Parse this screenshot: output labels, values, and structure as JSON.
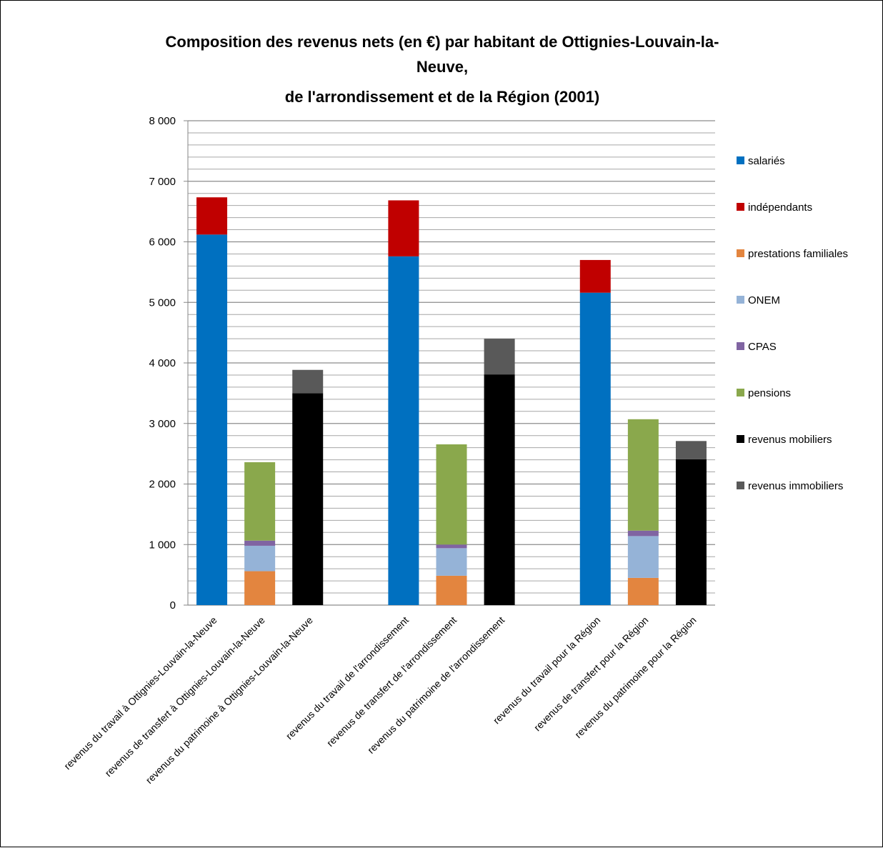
{
  "chart_data": {
    "type": "bar",
    "stacked": true,
    "title_lines": [
      "Composition  des revenus nets (en €) par habitant  de Ottignies-Louvain-la-",
      "Neuve,",
      "de l'arrondissement  et de la Région (2001)"
    ],
    "categories": [
      "revenus du travail à Ottignies-Louvain-la-Neuve",
      "revenus de transfert à Ottignies-Louvain-la-Neuve",
      "revenus du patrimoine à Ottignies-Louvain-la-Neuve",
      "",
      "revenus du travail de l'arrondissement",
      "revenus de transfert de l'arrondissement",
      "revenus du patrimoine de l'arrondissement",
      "",
      "revenus du travail pour la Région",
      "revenus de transfert pour la Région",
      "revenus du patrimoine pour la Région"
    ],
    "series": [
      {
        "name": "salariés",
        "color": "#0070C0",
        "values": [
          6120,
          0,
          0,
          0,
          5760,
          0,
          0,
          0,
          5160,
          0,
          0
        ]
      },
      {
        "name": "indépendants",
        "color": "#C00000",
        "values": [
          615,
          0,
          0,
          0,
          925,
          0,
          0,
          0,
          540,
          0,
          0
        ]
      },
      {
        "name": "prestations familiales",
        "color": "#E3853F",
        "values": [
          0,
          560,
          0,
          0,
          0,
          485,
          0,
          0,
          0,
          450,
          0
        ]
      },
      {
        "name": "ONEM",
        "color": "#95B3D7",
        "values": [
          0,
          420,
          0,
          0,
          0,
          455,
          0,
          0,
          0,
          690,
          0
        ]
      },
      {
        "name": "CPAS",
        "color": "#8064A2",
        "values": [
          0,
          85,
          0,
          0,
          0,
          60,
          0,
          0,
          0,
          90,
          0
        ]
      },
      {
        "name": "pensions",
        "color": "#8AA84C",
        "values": [
          0,
          1295,
          0,
          0,
          0,
          1655,
          0,
          0,
          0,
          1840,
          0
        ]
      },
      {
        "name": "revenus mobiliers",
        "color": "#000000",
        "values": [
          0,
          0,
          3500,
          0,
          0,
          0,
          3810,
          0,
          0,
          0,
          2410
        ]
      },
      {
        "name": "revenus immobiliers",
        "color": "#595959",
        "values": [
          0,
          0,
          385,
          0,
          0,
          0,
          590,
          0,
          0,
          0,
          300
        ]
      }
    ],
    "ylim": [
      0,
      8000
    ],
    "yticks": [
      0,
      1000,
      2000,
      3000,
      4000,
      5000,
      6000,
      7000,
      8000
    ],
    "ytick_labels": [
      "0",
      "1 000",
      "2 000",
      "3 000",
      "4 000",
      "5 000",
      "6 000",
      "7 000",
      "8 000"
    ],
    "minor_gridline_step": 200,
    "grid": true,
    "legend_position": "right",
    "xlabel": "",
    "ylabel": ""
  }
}
